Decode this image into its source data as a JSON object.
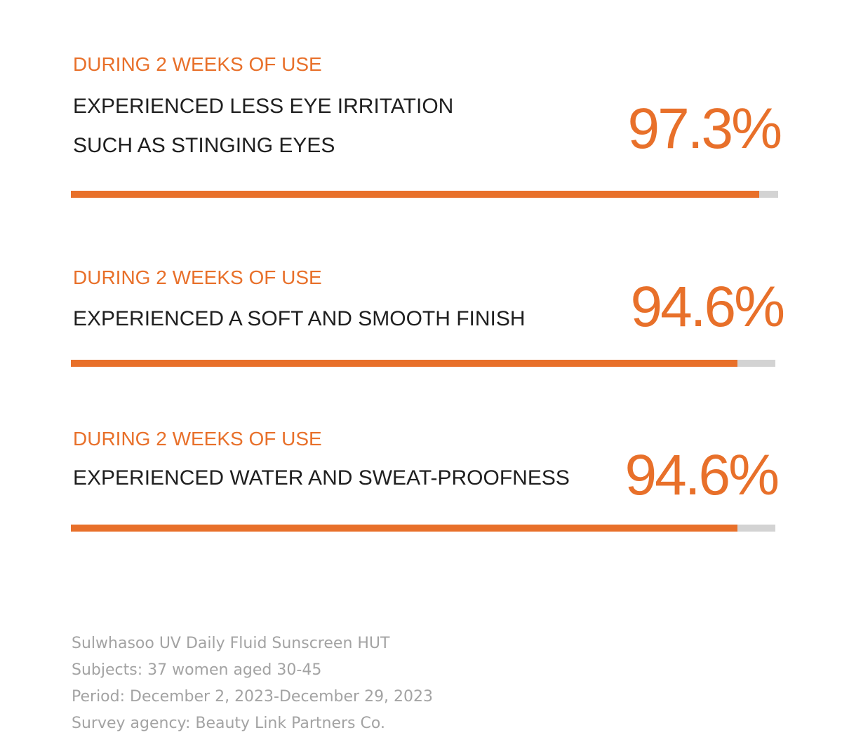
{
  "colors": {
    "accent": "#e8702a",
    "track": "#d3d3d3",
    "text": "#1f1f1f",
    "footnote": "#a3a3a3"
  },
  "chart_data": {
    "type": "bar",
    "categories": [
      "EXPERIENCED LESS EYE IRRITATION SUCH AS STINGING EYES",
      "EXPERIENCED A SOFT AND SMOOTH FINISH",
      "EXPERIENCED WATER AND SWEAT-PROOFNESS"
    ],
    "values": [
      97.3,
      94.6,
      94.6
    ],
    "ylim": [
      0,
      100
    ],
    "grid": false
  },
  "stats": [
    {
      "period": "DURING 2 WEEKS OF USE",
      "lines": [
        "EXPERIENCED LESS EYE IRRITATION",
        "SUCH AS STINGING EYES"
      ],
      "value_label": "97.3%",
      "value": 97.3
    },
    {
      "period": "DURING 2 WEEKS OF USE",
      "lines": [
        "EXPERIENCED A SOFT AND SMOOTH FINISH"
      ],
      "value_label": "94.6%",
      "value": 94.6
    },
    {
      "period": "DURING 2 WEEKS OF USE",
      "lines": [
        "EXPERIENCED WATER AND SWEAT-PROOFNESS"
      ],
      "value_label": "94.6%",
      "value": 94.6
    }
  ],
  "footnote": {
    "product": "Sulwhasoo UV Daily Fluid Sunscreen HUT",
    "subjects": "Subjects: 37 women aged 30-45",
    "period": "Period: December 2, 2023-December 29, 2023",
    "agency": "Survey agency: Beauty Link Partners Co."
  }
}
